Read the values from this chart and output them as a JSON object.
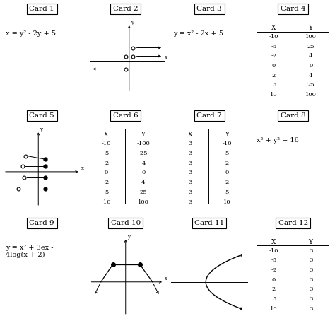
{
  "bg_color": "#ffffff",
  "cards": [
    {
      "id": 1,
      "label": "Card 1",
      "type": "text",
      "content": "x = y² - 2y + 5"
    },
    {
      "id": 2,
      "label": "Card 2",
      "type": "arrows_plot"
    },
    {
      "id": 3,
      "label": "Card 3",
      "type": "text",
      "content": "y = x² - 2x + 5"
    },
    {
      "id": 4,
      "label": "Card 4",
      "type": "table",
      "headers": [
        "X",
        "Y"
      ],
      "rows": [
        [
          "-10",
          "100"
        ],
        [
          "-5",
          "25"
        ],
        [
          "-2",
          "4"
        ],
        [
          "0",
          "0"
        ],
        [
          "2",
          "4"
        ],
        [
          "5",
          "25"
        ],
        [
          "10",
          "100"
        ]
      ]
    },
    {
      "id": 5,
      "label": "Card 5",
      "type": "mapping_plot"
    },
    {
      "id": 6,
      "label": "Card 6",
      "type": "table",
      "headers": [
        "X",
        "Y"
      ],
      "rows": [
        [
          "-10",
          "-100"
        ],
        [
          "-5",
          "-25"
        ],
        [
          "-2",
          "-4"
        ],
        [
          "0",
          "0"
        ],
        [
          "-2",
          "4"
        ],
        [
          "-5",
          "25"
        ],
        [
          "-10",
          "100"
        ]
      ]
    },
    {
      "id": 7,
      "label": "Card 7",
      "type": "table",
      "headers": [
        "X",
        "Y"
      ],
      "rows": [
        [
          "3",
          "-10"
        ],
        [
          "3",
          "-5"
        ],
        [
          "3",
          "-2"
        ],
        [
          "3",
          "0"
        ],
        [
          "3",
          "2"
        ],
        [
          "3",
          "5"
        ],
        [
          "3",
          "10"
        ]
      ]
    },
    {
      "id": 8,
      "label": "Card 8",
      "type": "text",
      "content": "x² + y² = 16"
    },
    {
      "id": 9,
      "label": "Card 9",
      "type": "text",
      "content": "y = x² + 3ex -\n4log(x + 2)"
    },
    {
      "id": 10,
      "label": "Card 10",
      "type": "trapezoid_plot"
    },
    {
      "id": 11,
      "label": "Card 11",
      "type": "parabola_plot"
    },
    {
      "id": 12,
      "label": "Card 12",
      "type": "table",
      "headers": [
        "X",
        "Y"
      ],
      "rows": [
        [
          "-10",
          "3"
        ],
        [
          "-5",
          "3"
        ],
        [
          "-2",
          "3"
        ],
        [
          "0",
          "3"
        ],
        [
          "2",
          "3"
        ],
        [
          "5",
          "3"
        ],
        [
          "10",
          "3"
        ]
      ]
    }
  ]
}
